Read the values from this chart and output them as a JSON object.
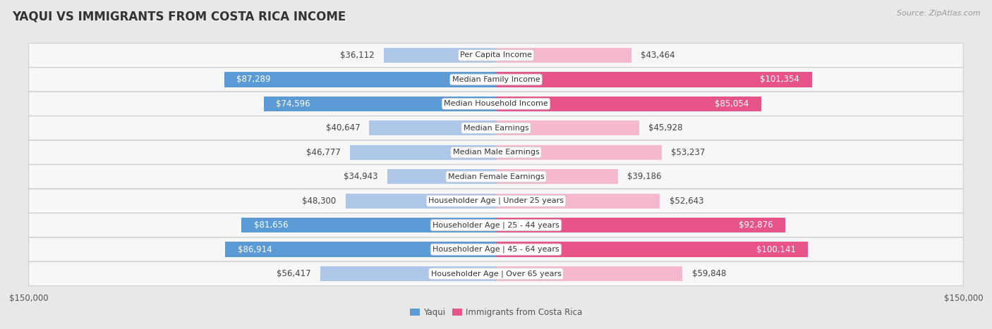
{
  "title": "YAQUI VS IMMIGRANTS FROM COSTA RICA INCOME",
  "source": "Source: ZipAtlas.com",
  "categories": [
    "Per Capita Income",
    "Median Family Income",
    "Median Household Income",
    "Median Earnings",
    "Median Male Earnings",
    "Median Female Earnings",
    "Householder Age | Under 25 years",
    "Householder Age | 25 - 44 years",
    "Householder Age | 45 - 64 years",
    "Householder Age | Over 65 years"
  ],
  "yaqui_values": [
    36112,
    87289,
    74596,
    40647,
    46777,
    34943,
    48300,
    81656,
    86914,
    56417
  ],
  "costa_rica_values": [
    43464,
    101354,
    85054,
    45928,
    53237,
    39186,
    52643,
    92876,
    100141,
    59848
  ],
  "yaqui_labels": [
    "$36,112",
    "$87,289",
    "$74,596",
    "$40,647",
    "$46,777",
    "$34,943",
    "$48,300",
    "$81,656",
    "$86,914",
    "$56,417"
  ],
  "costa_rica_labels": [
    "$43,464",
    "$101,354",
    "$85,054",
    "$45,928",
    "$53,237",
    "$39,186",
    "$52,643",
    "$92,876",
    "$100,141",
    "$59,848"
  ],
  "yaqui_color_light": "#aec6e8",
  "yaqui_color_dark": "#5b9bd5",
  "costa_rica_color_light": "#f5b8cf",
  "costa_rica_color_dark": "#e8538a",
  "max_value": 150000,
  "background_color": "#e8e8e8",
  "row_background": "#f7f7f7",
  "row_border": "#d0d0d0",
  "label_font_size": 8.5,
  "title_font_size": 12,
  "source_font_size": 8,
  "axis_label": "$150,000",
  "bar_height": 0.62,
  "legend_yaqui": "Yaqui",
  "legend_costa_rica": "Immigrants from Costa Rica",
  "inside_threshold_yaqui": 65000,
  "inside_threshold_costa_rica": 65000
}
